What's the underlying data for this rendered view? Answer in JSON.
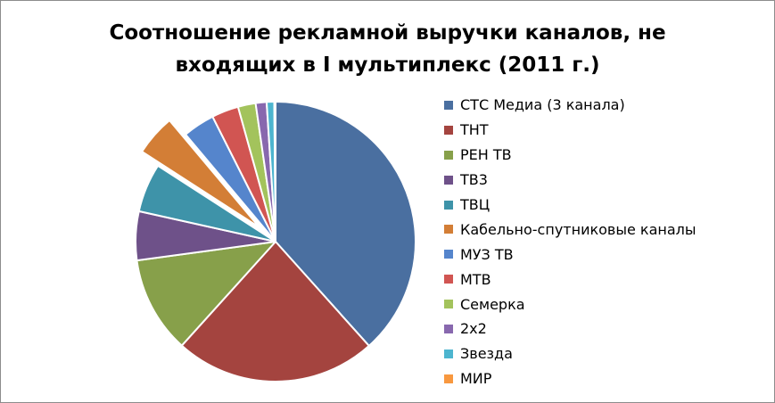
{
  "chart_data": {
    "type": "pie",
    "title": "Соотношение рекламной выручки каналов, не входящих в I мультиплекс (2011 г.)",
    "title_lines": [
      "Соотношение рекламной выручки каналов, не",
      "входящих в I мультиплекс (2011 г.)"
    ],
    "legend_position": "right",
    "exploded": [
      "Кабельно-спутниковые каналы"
    ],
    "slices": [
      {
        "label": "СТС Медиа (3 канала)",
        "value": 39.5,
        "color": "#4A6FA0"
      },
      {
        "label": "ТНТ",
        "value": 24.0,
        "color": "#A4443F"
      },
      {
        "label": "РЕН ТВ",
        "value": 11.5,
        "color": "#87A04A"
      },
      {
        "label": "ТВ3",
        "value": 5.8,
        "color": "#6E5189"
      },
      {
        "label": "ТВЦ",
        "value": 5.8,
        "color": "#3E93A9"
      },
      {
        "label": "Кабельно-спутниковые каналы",
        "value": 4.9,
        "color": "#D37E36"
      },
      {
        "label": "МУЗ ТВ",
        "value": 3.8,
        "color": "#5585CC"
      },
      {
        "label": "МТВ",
        "value": 3.2,
        "color": "#D15552"
      },
      {
        "label": "Семерка",
        "value": 2.1,
        "color": "#A3C35C"
      },
      {
        "label": "2x2",
        "value": 1.3,
        "color": "#8868AE"
      },
      {
        "label": "Звезда",
        "value": 0.9,
        "color": "#4DB5CF"
      },
      {
        "label": "МИР",
        "value": 0.15,
        "color": "#F8983F"
      }
    ]
  }
}
